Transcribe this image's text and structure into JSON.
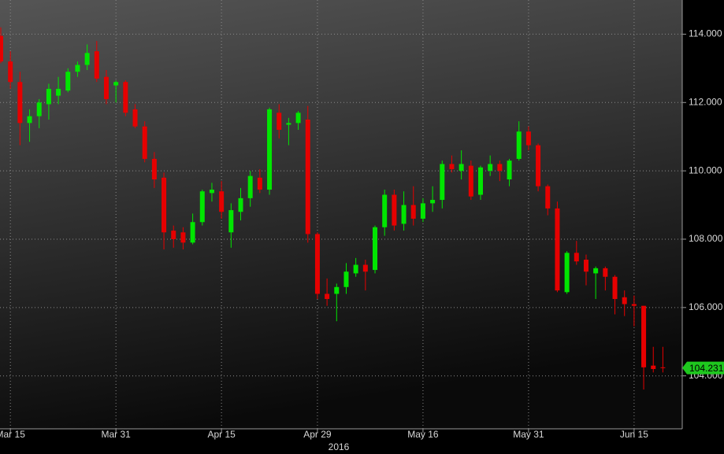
{
  "chart_data": {
    "type": "candlestick",
    "categories": [
      null,
      "Mar 15",
      null,
      null,
      null,
      null,
      null,
      null,
      null,
      null,
      null,
      null,
      "Mar 31",
      null,
      null,
      null,
      null,
      null,
      null,
      null,
      null,
      null,
      null,
      "Apr 15",
      null,
      null,
      null,
      null,
      null,
      null,
      null,
      null,
      null,
      "Apr 29",
      null,
      null,
      null,
      null,
      null,
      null,
      null,
      null,
      null,
      null,
      "May 16",
      null,
      null,
      null,
      null,
      null,
      null,
      null,
      null,
      null,
      null,
      "May 31",
      null,
      null,
      null,
      null,
      null,
      null,
      null,
      null,
      null,
      null,
      "Jun 15",
      null,
      null,
      null
    ],
    "open": [
      113.95,
      113.2,
      112.6,
      111.4,
      111.6,
      111.95,
      112.2,
      112.35,
      112.9,
      113.1,
      113.5,
      112.75,
      112.5,
      112.6,
      111.8,
      111.3,
      110.35,
      109.8,
      108.25,
      108.2,
      107.9,
      108.5,
      109.35,
      109.4,
      108.2,
      108.8,
      109.2,
      109.8,
      109.45,
      111.7,
      111.35,
      111.4,
      111.5,
      108.15,
      106.4,
      106.4,
      106.6,
      107.0,
      107.25,
      107.1,
      108.35,
      109.3,
      108.45,
      109.0,
      108.6,
      109.05,
      109.15,
      110.2,
      110.0,
      110.15,
      109.3,
      110.0,
      110.2,
      109.75,
      110.35,
      111.15,
      110.75,
      109.55,
      108.9,
      106.45,
      107.6,
      107.4,
      107.0,
      107.15,
      106.9,
      106.3,
      106.1,
      106.05,
      104.3,
      104.25
    ],
    "high": [
      114.2,
      113.5,
      112.9,
      111.8,
      112.1,
      112.55,
      112.75,
      113.0,
      113.2,
      113.7,
      113.8,
      112.95,
      112.65,
      112.65,
      111.95,
      111.45,
      110.55,
      109.95,
      108.4,
      108.35,
      108.75,
      109.45,
      109.65,
      109.7,
      109.05,
      109.5,
      110.0,
      110.05,
      111.85,
      111.95,
      111.55,
      111.75,
      111.9,
      108.2,
      106.85,
      106.7,
      107.3,
      107.45,
      107.4,
      108.4,
      109.45,
      109.45,
      109.4,
      109.55,
      109.2,
      109.55,
      110.3,
      110.45,
      110.6,
      110.3,
      110.15,
      110.45,
      110.3,
      110.35,
      111.45,
      111.3,
      110.8,
      109.6,
      109.1,
      107.65,
      107.95,
      107.55,
      107.2,
      107.2,
      106.95,
      106.5,
      106.35,
      106.05,
      104.85,
      104.85
    ],
    "low": [
      113.15,
      112.4,
      110.75,
      110.85,
      111.25,
      111.5,
      111.95,
      112.3,
      112.75,
      112.95,
      112.6,
      111.95,
      112.0,
      111.6,
      111.25,
      110.25,
      109.5,
      107.7,
      107.75,
      107.7,
      107.85,
      108.4,
      109.1,
      108.6,
      107.75,
      108.55,
      108.95,
      109.35,
      109.3,
      110.95,
      110.75,
      111.2,
      107.9,
      106.25,
      106.05,
      105.6,
      106.4,
      106.9,
      106.5,
      107.0,
      108.1,
      108.25,
      108.25,
      108.4,
      108.5,
      108.8,
      108.9,
      109.95,
      109.75,
      109.15,
      109.15,
      109.85,
      109.7,
      109.55,
      110.3,
      110.6,
      109.4,
      108.7,
      106.45,
      106.4,
      107.25,
      106.65,
      106.25,
      106.5,
      105.8,
      105.75,
      105.45,
      103.6,
      104.1,
      104.1
    ],
    "close": [
      113.2,
      112.6,
      111.4,
      111.6,
      112.0,
      112.4,
      112.4,
      112.9,
      113.1,
      113.45,
      112.7,
      112.1,
      112.6,
      111.7,
      111.3,
      110.35,
      109.75,
      108.2,
      108.0,
      107.9,
      108.5,
      109.4,
      109.45,
      108.8,
      108.85,
      109.2,
      109.85,
      109.45,
      111.8,
      111.2,
      111.4,
      111.7,
      108.15,
      106.4,
      106.25,
      106.6,
      107.05,
      107.25,
      107.05,
      108.35,
      109.3,
      108.4,
      109.0,
      108.6,
      109.05,
      109.15,
      110.2,
      110.05,
      110.2,
      109.25,
      110.1,
      110.2,
      110.0,
      110.3,
      111.15,
      110.75,
      109.55,
      108.9,
      106.5,
      107.6,
      107.35,
      107.05,
      107.15,
      106.9,
      106.25,
      106.1,
      106.05,
      104.25,
      104.2,
      104.231
    ],
    "up_color": "#00e600",
    "down_color": "#e60000",
    "ylim": [
      102.45,
      115.0
    ],
    "yticks": [
      {
        "value": 104,
        "label": "104.000"
      },
      {
        "value": 106,
        "label": "106.000"
      },
      {
        "value": 108,
        "label": "108.000"
      },
      {
        "value": 110,
        "label": "110.000"
      },
      {
        "value": 112,
        "label": "112.000"
      },
      {
        "value": 114,
        "label": "114.000"
      }
    ],
    "x_sublabel": "2016",
    "last_price": {
      "value": 104.231,
      "label": "104.231"
    },
    "last_price_color": "#1ec81e",
    "grid": true
  }
}
